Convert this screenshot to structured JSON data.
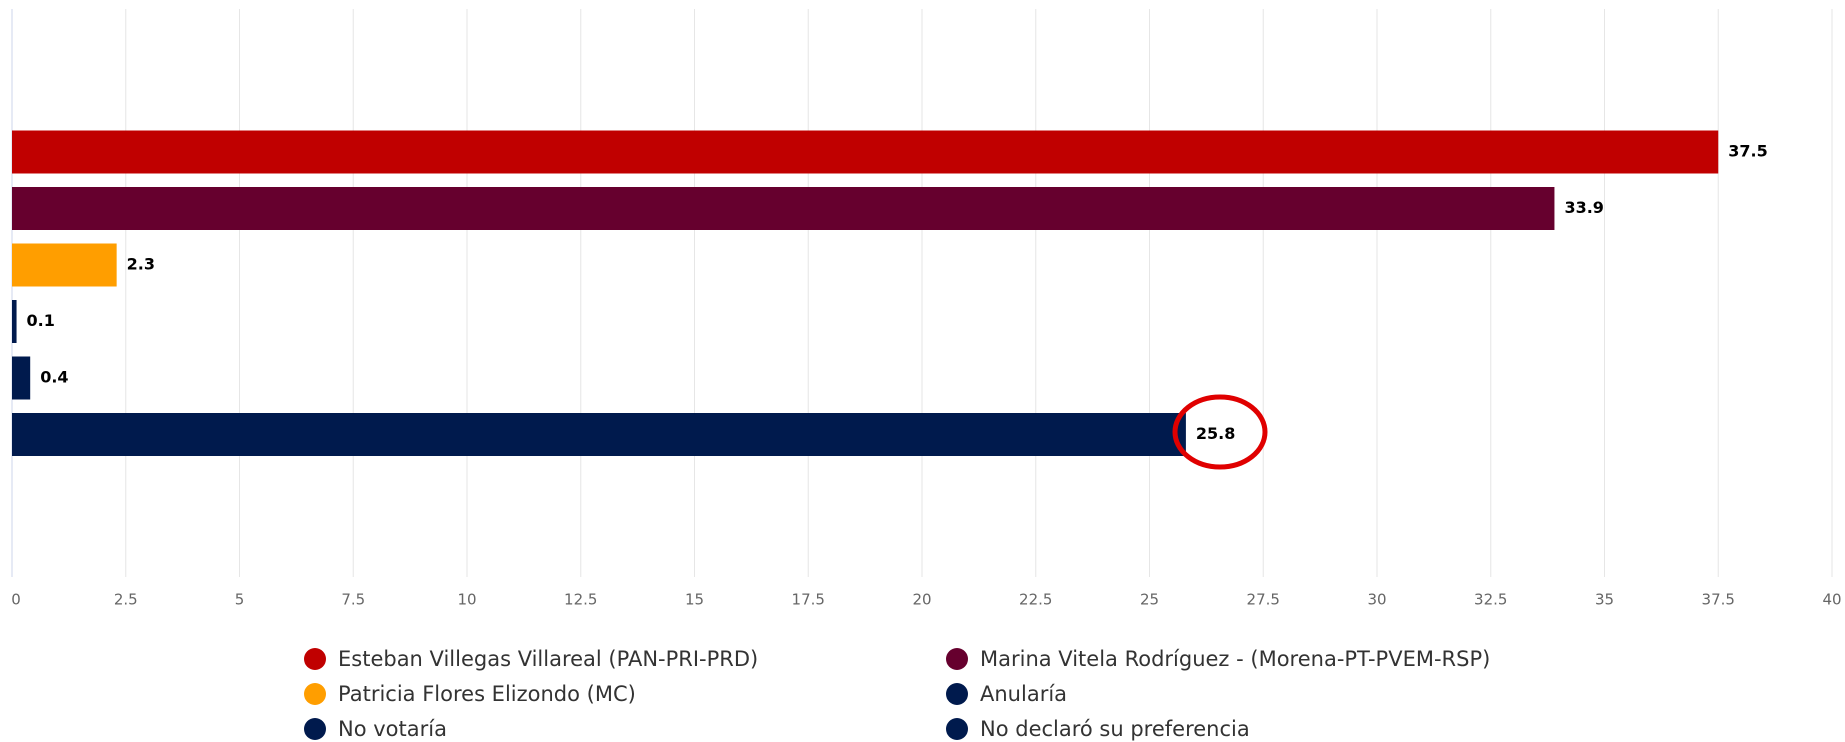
{
  "chart_data": {
    "type": "bar",
    "orientation": "horizontal",
    "series": [
      {
        "name": "Esteban Villegas Villareal (PAN-PRI-PRD)",
        "color": "#c00000",
        "values": [
          37.5
        ]
      },
      {
        "name": "Marina Vitela Rodríguez - (Morena-PT-PVEM-RSP)",
        "color": "#66002e",
        "values": [
          33.9
        ]
      },
      {
        "name": "Patricia Flores Elizondo (MC)",
        "color": "#ff9e00",
        "values": [
          2.3
        ]
      },
      {
        "name": "Anularía",
        "color": "#001a4d",
        "values": [
          0.1
        ]
      },
      {
        "name": "No votaría",
        "color": "#001a4d",
        "values": [
          0.4
        ]
      },
      {
        "name": "No declaró su preferencia",
        "color": "#001a4d",
        "values": [
          25.8
        ]
      }
    ],
    "xlim": [
      0,
      40
    ],
    "xticks": [
      0,
      2.5,
      5,
      7.5,
      10,
      12.5,
      15,
      17.5,
      20,
      22.5,
      25,
      27.5,
      30,
      32.5,
      35,
      37.5,
      40
    ],
    "grid": true,
    "legend": "bottom"
  }
}
